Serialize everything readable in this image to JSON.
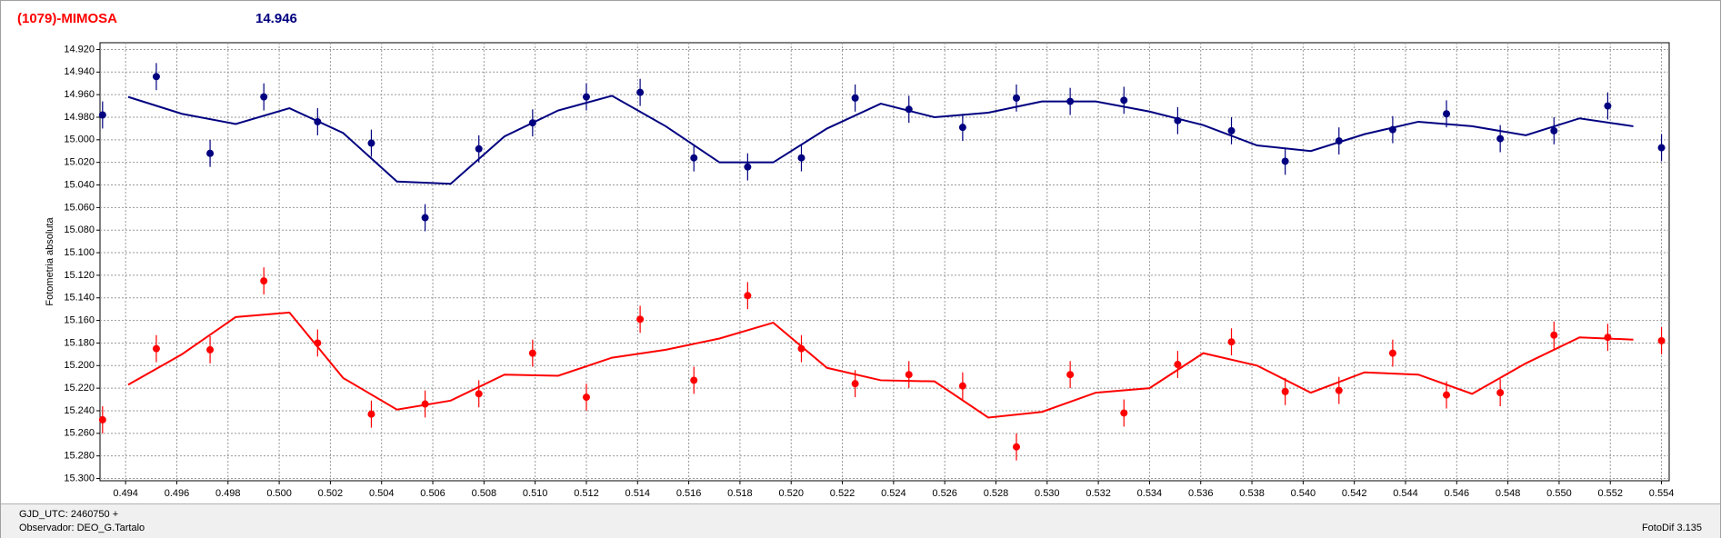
{
  "chart_data": {
    "type": "scatter",
    "title": "(1079)-MIMOSA",
    "subtitle": "14.946",
    "ylabel": "Fotometria absoluta",
    "x": [
      0.4931,
      0.4952,
      0.4973,
      0.4994,
      0.5015,
      0.5036,
      0.5057,
      0.5078,
      0.5099,
      0.512,
      0.5141,
      0.5162,
      0.5183,
      0.5204,
      0.5225,
      0.5246,
      0.5267,
      0.5288,
      0.5309,
      0.533,
      0.5351,
      0.5372,
      0.5393,
      0.5414,
      0.5435,
      0.5456,
      0.5477,
      0.5498,
      0.5519,
      0.554
    ],
    "series": [
      {
        "color": "#000080",
        "error": 0.012,
        "values": [
          14.978,
          14.944,
          15.012,
          14.962,
          14.984,
          15.003,
          15.069,
          15.008,
          14.985,
          14.962,
          14.958,
          15.016,
          15.024,
          15.016,
          14.963,
          14.973,
          14.989,
          14.963,
          14.966,
          14.965,
          14.983,
          14.992,
          15.019,
          15.001,
          14.991,
          14.977,
          14.999,
          14.992,
          14.97,
          15.007
        ]
      },
      {
        "color": "#ff0000",
        "error": 0.012,
        "values": [
          15.248,
          15.185,
          15.186,
          15.125,
          15.18,
          15.243,
          15.234,
          15.225,
          15.189,
          15.228,
          15.159,
          15.213,
          15.138,
          15.185,
          15.216,
          15.208,
          15.218,
          15.272,
          15.208,
          15.242,
          15.199,
          15.179,
          15.223,
          15.222,
          15.189,
          15.226,
          15.224,
          15.173,
          15.175,
          15.178
        ]
      }
    ],
    "fit_x": [
      0.4941,
      0.4962,
      0.4983,
      0.5004,
      0.5025,
      0.5046,
      0.5067,
      0.5088,
      0.5109,
      0.513,
      0.5151,
      0.5172,
      0.5193,
      0.5214,
      0.5235,
      0.5256,
      0.5277,
      0.5298,
      0.5319,
      0.534,
      0.5361,
      0.5382,
      0.5403,
      0.5424,
      0.5445,
      0.5466,
      0.5487,
      0.5508,
      0.5529
    ],
    "fits": [
      {
        "color": "#000080",
        "values": [
          14.962,
          14.977,
          14.986,
          14.972,
          14.994,
          15.037,
          15.039,
          14.997,
          14.974,
          14.961,
          14.988,
          15.02,
          15.02,
          14.99,
          14.968,
          14.98,
          14.976,
          14.966,
          14.966,
          14.975,
          14.987,
          15.005,
          15.01,
          14.995,
          14.984,
          14.988,
          14.996,
          14.981,
          14.988
        ]
      },
      {
        "color": "#ff0000",
        "values": [
          15.217,
          15.19,
          15.157,
          15.153,
          15.211,
          15.239,
          15.231,
          15.208,
          15.209,
          15.193,
          15.186,
          15.176,
          15.162,
          15.202,
          15.213,
          15.214,
          15.246,
          15.241,
          15.224,
          15.22,
          15.189,
          15.2,
          15.224,
          15.206,
          15.208,
          15.225,
          15.198,
          15.175,
          15.177
        ]
      }
    ],
    "xlim": [
      0.493,
      0.5543
    ],
    "ylim": [
      14.914,
      15.302
    ],
    "y_inverted": true,
    "grid": true,
    "xticks": [
      0.494,
      0.496,
      0.498,
      {
        "value": 0.5,
        "label": "0.500"
      },
      0.502,
      0.504,
      0.506,
      0.508,
      {
        "value": 0.51,
        "label": "0.510"
      },
      0.512,
      0.514,
      0.516,
      0.518,
      {
        "value": 0.52,
        "label": "0.520"
      },
      0.522,
      0.524,
      0.526,
      0.528,
      {
        "value": 0.53,
        "label": "0.530"
      },
      0.532,
      0.534,
      0.536,
      0.538,
      {
        "value": 0.54,
        "label": "0.540"
      },
      0.542,
      0.544,
      0.546,
      0.548,
      {
        "value": 0.55,
        "label": "0.550"
      },
      0.552,
      0.554
    ],
    "yticks": [
      {
        "value": 14.92,
        "label": "14.920"
      },
      {
        "value": 14.94,
        "label": "14.940"
      },
      {
        "value": 14.96,
        "label": "14.960"
      },
      {
        "value": 14.98,
        "label": "14.980"
      },
      {
        "value": 15.0,
        "label": "15.000"
      },
      {
        "value": 15.02,
        "label": "15.020"
      },
      {
        "value": 15.04,
        "label": "15.040"
      },
      {
        "value": 15.06,
        "label": "15.060"
      },
      {
        "value": 15.08,
        "label": "15.080"
      },
      {
        "value": 15.1,
        "label": "15.100"
      },
      {
        "value": 15.12,
        "label": "15.120"
      },
      {
        "value": 15.14,
        "label": "15.140"
      },
      {
        "value": 15.16,
        "label": "15.160"
      },
      {
        "value": 15.18,
        "label": "15.180"
      },
      {
        "value": 15.2,
        "label": "15.200"
      },
      {
        "value": 15.22,
        "label": "15.220"
      },
      {
        "value": 15.24,
        "label": "15.240"
      },
      {
        "value": 15.26,
        "label": "15.260"
      },
      {
        "value": 15.28,
        "label": "15.280"
      },
      {
        "value": 15.3,
        "label": "15.300"
      }
    ]
  },
  "footer": {
    "gjd": "GJD_UTC: 2460750 +",
    "observer": "Observador: DEO_G.Tartalo",
    "version": "FotoDif 3.135"
  }
}
